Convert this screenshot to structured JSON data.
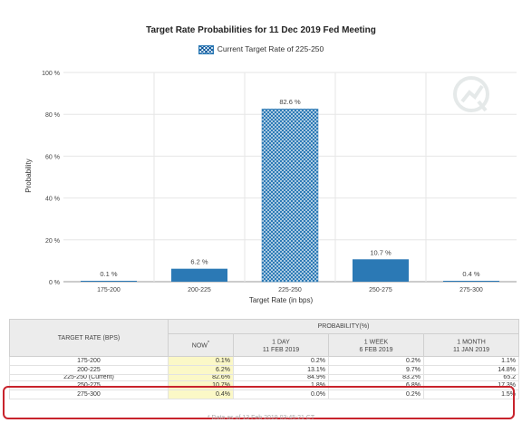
{
  "chart_data": {
    "type": "bar",
    "title": "Target Rate Probabilities for 11 Dec 2019 Fed Meeting",
    "legend": "Current Target Rate of 225-250",
    "xlabel": "Target Rate (in bps)",
    "ylabel": "Probability",
    "ylim": [
      0,
      100
    ],
    "yticks": [
      "0 %",
      "20 %",
      "40 %",
      "60 %",
      "80 %",
      "100 %"
    ],
    "categories": [
      "175-200",
      "200-225",
      "225-250",
      "250-275",
      "275-300"
    ],
    "values": [
      0.1,
      6.2,
      82.6,
      10.7,
      0.4
    ],
    "data_labels": [
      "0.1 %",
      "6.2 %",
      "82.6 %",
      "10.7 %",
      "0.4 %"
    ],
    "current_index": 2,
    "colors": {
      "bar": "#2b79b5",
      "grid": "#e6e6e6"
    }
  },
  "table": {
    "rate_header": "TARGET RATE (BPS)",
    "prob_header": "PROBABILITY(%)",
    "columns": [
      {
        "label": "NOW",
        "sup": "*",
        "date": ""
      },
      {
        "label": "1 DAY",
        "sup": "",
        "date": "11 FEB 2019"
      },
      {
        "label": "1 WEEK",
        "sup": "",
        "date": "6 FEB 2019"
      },
      {
        "label": "1 MONTH",
        "sup": "",
        "date": "11 JAN 2019"
      }
    ],
    "rows": [
      {
        "rate": "175-200",
        "values": [
          "0.1%",
          "0.2%",
          "0.2%",
          "1.1%"
        ]
      },
      {
        "rate": "200-225",
        "values": [
          "6.2%",
          "13.1%",
          "9.7%",
          "14.8%"
        ]
      },
      {
        "rate": "225-250 (Current)",
        "values": [
          "82.6%",
          "84.9%",
          "83.2%",
          "65.2"
        ]
      },
      {
        "rate": "250-275",
        "values": [
          "10.7%",
          "1.8%",
          "6.8%",
          "17.3%"
        ]
      },
      {
        "rate": "275-300",
        "values": [
          "0.4%",
          "0.0%",
          "0.2%",
          "1.5%"
        ]
      }
    ],
    "footnote": "* Data as of 13 Feb 2019 03:45:21 CT"
  }
}
